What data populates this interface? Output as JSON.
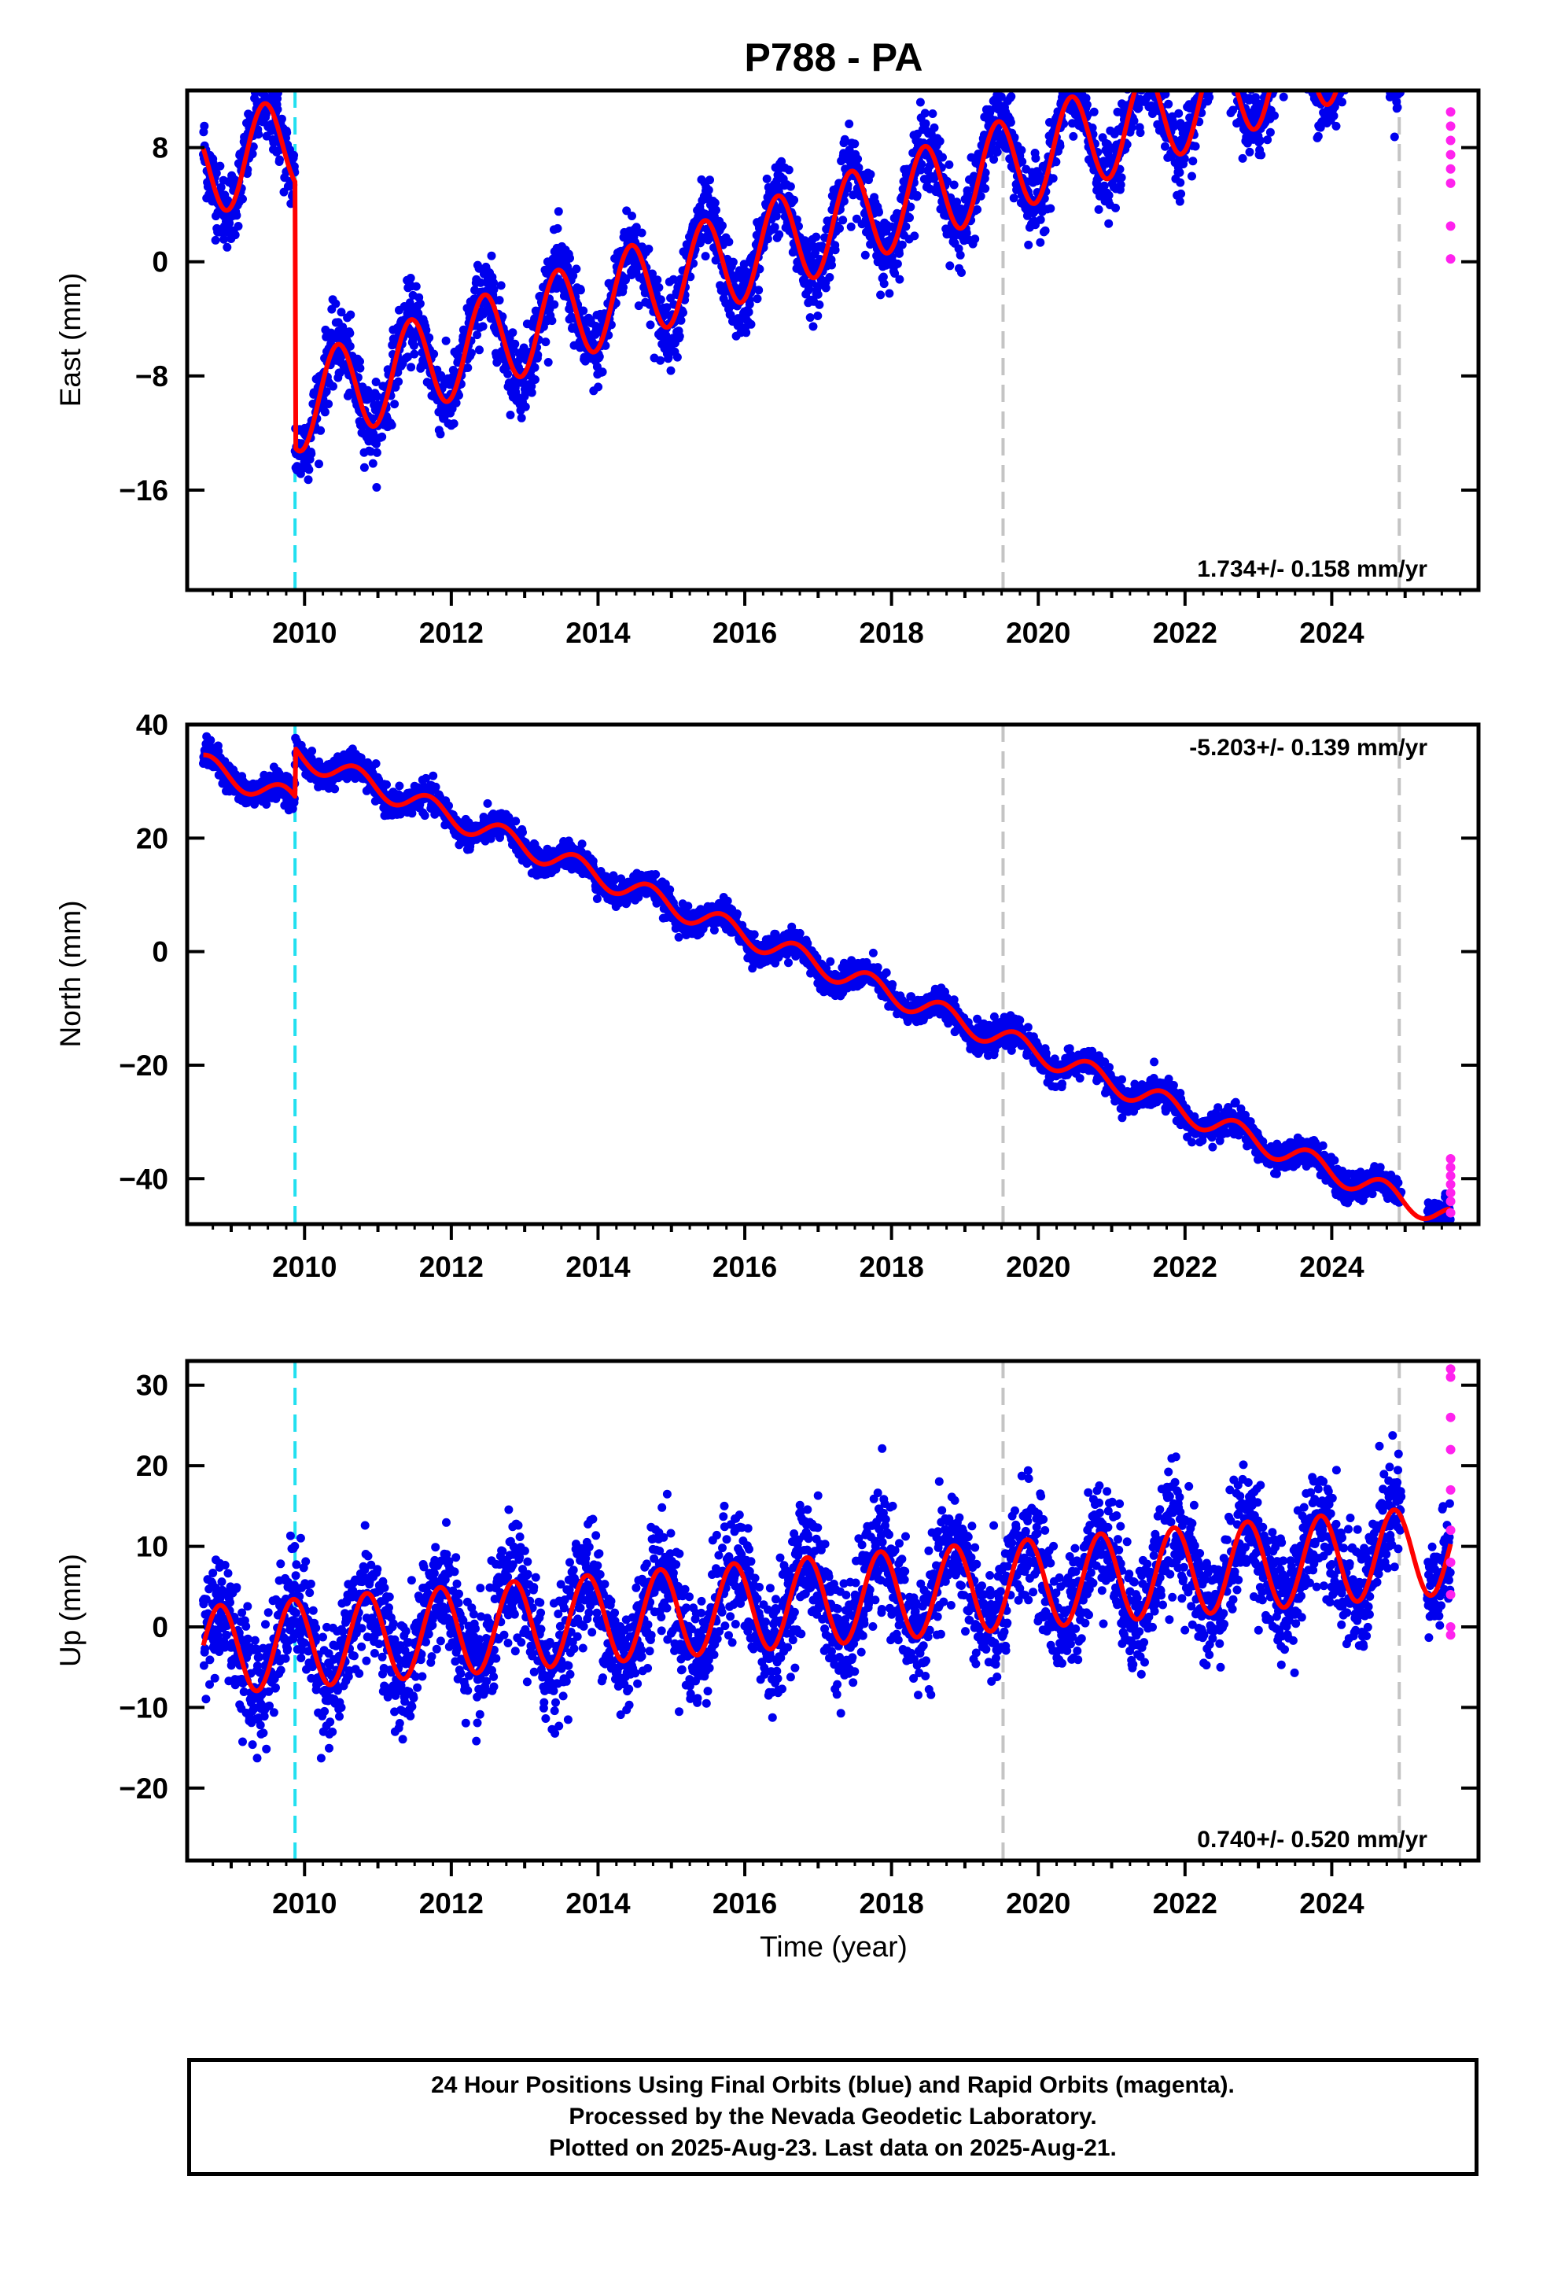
{
  "chart_data": {
    "type": "scatter",
    "title": "P788 - PA",
    "xlabel": "Time (year)",
    "xlim": [
      2008.4,
      2026.0
    ],
    "x_ticks": [
      2010,
      2012,
      2014,
      2016,
      2018,
      2020,
      2022,
      2024
    ],
    "vertical_markers": [
      {
        "x": 2009.87,
        "style": "dashed",
        "color": "#22e0f0"
      },
      {
        "x": 2019.52,
        "style": "dashed",
        "color": "#c4c4c4"
      },
      {
        "x": 2024.92,
        "style": "dashed",
        "color": "#c4c4c4"
      }
    ],
    "colors": {
      "final": "#0000ee",
      "rapid": "#ff22ee",
      "model": "#ff0000"
    },
    "series_legend": [
      "Final Orbits (blue)",
      "Rapid Orbits (magenta)"
    ],
    "panels": [
      {
        "name": "east",
        "ylabel": "East (mm)",
        "ylim": [
          -23,
          12
        ],
        "y_ticks": [
          8,
          0,
          -8,
          -16
        ],
        "y_tick_labels": [
          "8",
          "0",
          "−8",
          "−16"
        ],
        "rate_label": "1.734+/- 0.158 mm/yr",
        "rate_position": "bottom-right",
        "model": {
          "offset_steps": [
            [
              2009.87,
              -18.6
            ]
          ],
          "trend_mm_per_yr": 1.734,
          "intercept": 6.3,
          "anchor_year": 2008.6,
          "annual_amp": 3.3,
          "annual_phase": 0.2
        },
        "rapid_y": [
          10.5,
          9.5,
          8.5,
          7.5,
          6.5,
          5.5,
          2.5,
          0.2
        ]
      },
      {
        "name": "north",
        "ylabel": "North (mm)",
        "ylim": [
          -48,
          40
        ],
        "y_ticks": [
          40,
          20,
          0,
          -20,
          -40
        ],
        "y_tick_labels": [
          "40",
          "20",
          "0",
          "−20",
          "−40"
        ],
        "rate_label": "-5.203+/- 0.139 mm/yr",
        "rate_position": "top-right",
        "model": {
          "offset_steps": [
            [
              2009.87,
              8.5
            ]
          ],
          "trend_mm_per_yr": -5.203,
          "intercept": 33.0,
          "anchor_year": 2008.6,
          "annual_amp": 2.0,
          "annual_phase": 0.45
        },
        "rapid_y": [
          -36.5,
          -38,
          -39.5,
          -41,
          -42.5,
          -44,
          -46
        ]
      },
      {
        "name": "up",
        "ylabel": "Up (mm)",
        "ylim": [
          -29,
          33
        ],
        "y_ticks": [
          30,
          20,
          10,
          0,
          -10,
          -20
        ],
        "y_tick_labels": [
          "30",
          "20",
          "10",
          "0",
          "−10",
          "−20"
        ],
        "rate_label": "0.740+/- 0.520 mm/yr",
        "rate_position": "bottom-right",
        "model": {
          "offset_steps": [],
          "trend_mm_per_yr": 0.74,
          "intercept": -3.0,
          "anchor_year": 2008.6,
          "annual_amp": 5.5,
          "annual_phase": 0.6
        },
        "rapid_y": [
          32,
          31,
          26,
          22,
          17,
          12,
          8,
          4,
          0,
          -1
        ]
      }
    ]
  },
  "footer": {
    "line1": "24 Hour Positions Using Final Orbits (blue) and Rapid Orbits (magenta).",
    "line2": "Processed by the Nevada Geodetic Laboratory.",
    "line3": "Plotted on 2025-Aug-23. Last data on 2025-Aug-21."
  }
}
